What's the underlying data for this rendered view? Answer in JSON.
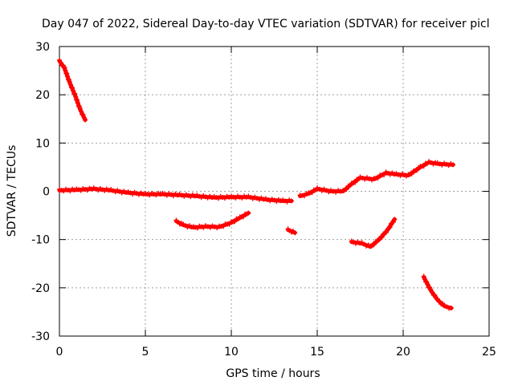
{
  "chart_data": {
    "type": "scatter",
    "title": "Day 047 of 2022, Sidereal Day-to-day VTEC variation (SDTVAR) for receiver picl",
    "xlabel": "GPS time / hours",
    "ylabel": "SDTVAR / TECUs",
    "xlim": [
      0,
      25
    ],
    "ylim": [
      -30,
      30
    ],
    "grid": true,
    "x_ticks": [
      0,
      5,
      10,
      15,
      20,
      25
    ],
    "y_ticks": [
      -30,
      -20,
      -10,
      0,
      10,
      20,
      30
    ],
    "x_tick_labels": [
      "0",
      "5",
      "10",
      "15",
      "20",
      "25"
    ],
    "y_tick_labels": [
      "-30",
      "-20",
      "-10",
      "0",
      "10",
      "20",
      "30"
    ],
    "color": "#ff0000",
    "series": [
      {
        "name": "track-1",
        "points": [
          [
            0.0,
            27.0
          ],
          [
            0.3,
            25.5
          ],
          [
            0.6,
            22.5
          ],
          [
            0.9,
            20.0
          ],
          [
            1.2,
            17.0
          ],
          [
            1.5,
            14.8
          ]
        ]
      },
      {
        "name": "track-2",
        "points": [
          [
            0.0,
            0.2
          ],
          [
            1.0,
            0.3
          ],
          [
            2.0,
            0.5
          ],
          [
            3.0,
            0.2
          ],
          [
            4.0,
            -0.3
          ],
          [
            5.0,
            -0.6
          ],
          [
            6.0,
            -0.6
          ],
          [
            7.0,
            -0.8
          ],
          [
            8.0,
            -1.0
          ],
          [
            9.0,
            -1.3
          ],
          [
            10.0,
            -1.2
          ],
          [
            11.0,
            -1.2
          ],
          [
            12.0,
            -1.7
          ],
          [
            13.0,
            -2.0
          ],
          [
            13.5,
            -2.0
          ]
        ]
      },
      {
        "name": "track-3",
        "points": [
          [
            6.8,
            -6.2
          ],
          [
            7.2,
            -7.0
          ],
          [
            7.8,
            -7.5
          ],
          [
            8.5,
            -7.3
          ],
          [
            9.3,
            -7.4
          ],
          [
            10.0,
            -6.5
          ],
          [
            10.5,
            -5.5
          ],
          [
            11.0,
            -4.5
          ]
        ]
      },
      {
        "name": "track-4",
        "points": [
          [
            13.3,
            -8.0
          ],
          [
            13.7,
            -8.6
          ]
        ]
      },
      {
        "name": "track-5",
        "points": [
          [
            14.0,
            -1.0
          ],
          [
            14.5,
            -0.5
          ],
          [
            15.0,
            0.5
          ],
          [
            15.8,
            0.0
          ],
          [
            16.5,
            0.0
          ],
          [
            17.0,
            1.5
          ],
          [
            17.5,
            2.8
          ],
          [
            18.3,
            2.5
          ],
          [
            19.0,
            3.8
          ],
          [
            19.6,
            3.5
          ],
          [
            20.3,
            3.3
          ],
          [
            21.0,
            5.0
          ],
          [
            21.5,
            6.0
          ],
          [
            22.0,
            5.7
          ],
          [
            22.9,
            5.5
          ]
        ]
      },
      {
        "name": "track-6",
        "points": [
          [
            17.0,
            -10.5
          ],
          [
            17.6,
            -10.8
          ],
          [
            18.1,
            -11.5
          ],
          [
            18.6,
            -10.0
          ],
          [
            19.1,
            -8.0
          ],
          [
            19.5,
            -5.8
          ]
        ]
      },
      {
        "name": "track-7",
        "points": [
          [
            21.2,
            -17.8
          ],
          [
            21.6,
            -20.5
          ],
          [
            22.0,
            -22.5
          ],
          [
            22.4,
            -23.8
          ],
          [
            22.8,
            -24.2
          ]
        ]
      }
    ]
  }
}
